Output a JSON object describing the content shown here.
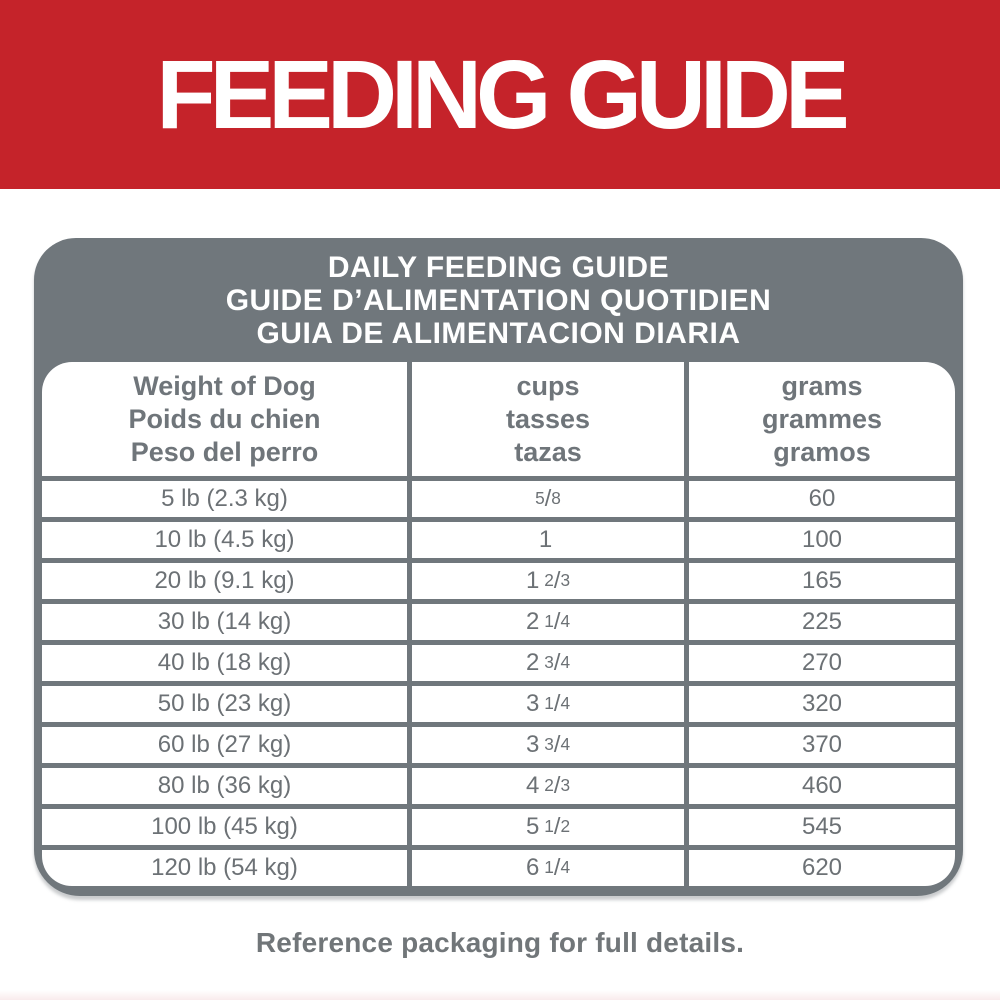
{
  "banner": {
    "title": "FEEDING GUIDE",
    "bg_color": "#c5232a",
    "text_color": "#ffffff"
  },
  "card": {
    "bg_color": "#70777c",
    "title_lines": [
      "DAILY FEEDING GUIDE",
      "GUIDE D’ALIMENTATION QUOTIDIEN",
      "GUIA DE ALIMENTACION DIARIA"
    ]
  },
  "table": {
    "columns": [
      {
        "id": "weight",
        "lines": [
          "Weight of Dog",
          "Poids du chien",
          "Peso del perro"
        ]
      },
      {
        "id": "cups",
        "lines": [
          "cups",
          "tasses",
          "tazas"
        ]
      },
      {
        "id": "grams",
        "lines": [
          "grams",
          "grammes",
          "gramos"
        ]
      }
    ],
    "rows": [
      {
        "weight": "5 lb (2.3 kg)",
        "cups": {
          "whole": "",
          "num": "5",
          "slash": "/",
          "den": "8"
        },
        "grams": "60"
      },
      {
        "weight": "10 lb (4.5 kg)",
        "cups": {
          "whole": "1"
        },
        "grams": "100"
      },
      {
        "weight": "20 lb (9.1 kg)",
        "cups": {
          "whole": "1",
          "num": "2",
          "slash": "/",
          "den": "3"
        },
        "grams": "165"
      },
      {
        "weight": "30 lb (14 kg)",
        "cups": {
          "whole": "2",
          "num": "1",
          "slash": "/",
          "den": "4"
        },
        "grams": "225"
      },
      {
        "weight": "40 lb (18 kg)",
        "cups": {
          "whole": "2",
          "num": "3",
          "slash": "/",
          "den": "4"
        },
        "grams": "270"
      },
      {
        "weight": "50 lb (23 kg)",
        "cups": {
          "whole": "3",
          "num": "1",
          "slash": "/",
          "den": "4"
        },
        "grams": "320"
      },
      {
        "weight": "60 lb (27 kg)",
        "cups": {
          "whole": "3",
          "num": "3",
          "slash": "/",
          "den": "4"
        },
        "grams": "370"
      },
      {
        "weight": "80 lb (36 kg)",
        "cups": {
          "whole": "4",
          "num": "2",
          "slash": "/",
          "den": "3"
        },
        "grams": "460"
      },
      {
        "weight": "100 lb (45 kg)",
        "cups": {
          "whole": "5",
          "num": "1",
          "slash": "/",
          "den": "2"
        },
        "grams": "545"
      },
      {
        "weight": "120 lb (54 kg)",
        "cups": {
          "whole": "6",
          "num": "1",
          "slash": "/",
          "den": "4"
        },
        "grams": "620"
      }
    ]
  },
  "footer": {
    "note": "Reference packaging for full details."
  },
  "colors": {
    "accent_red": "#c5232a",
    "card_gray": "#70777c",
    "cell_text_gray": "#6c7175",
    "bottom_strip_pink": "#f9ebec"
  }
}
